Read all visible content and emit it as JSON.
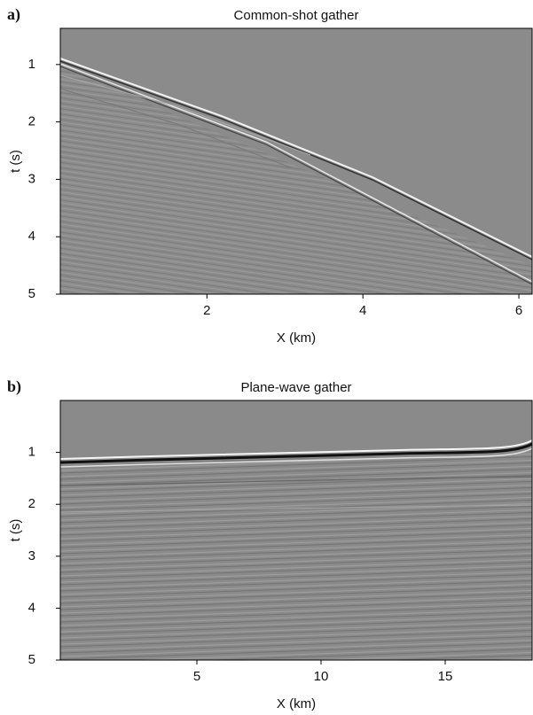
{
  "chart_data": [
    {
      "type": "image",
      "panel_label": "a)",
      "title": "Common-shot gather",
      "xlabel": "X (km)",
      "ylabel": "t (s)",
      "xlim": [
        0.12,
        6.17
      ],
      "xticks": [
        2,
        4,
        6
      ],
      "ylim": [
        0.37,
        5
      ],
      "yticks": [
        1,
        2,
        3,
        4,
        5
      ],
      "y_inverted": true
    },
    {
      "type": "image",
      "panel_label": "b)",
      "title": "Plane-wave gather",
      "xlabel": "X (km)",
      "ylabel": "t (s)",
      "xlim": [
        -0.5,
        18.5
      ],
      "xticks": [
        5,
        10,
        15
      ],
      "ylim": [
        0,
        5
      ],
      "yticks": [
        1,
        2,
        3,
        4,
        5
      ],
      "y_inverted": true
    }
  ]
}
